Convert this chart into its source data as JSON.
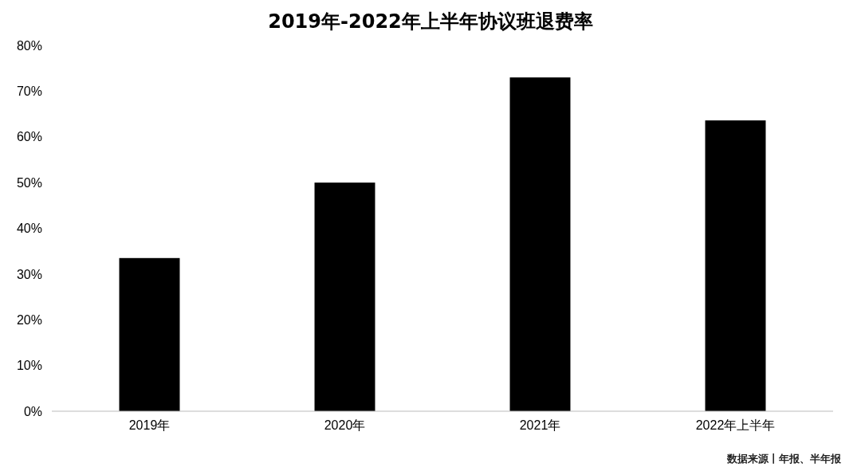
{
  "chart_data": {
    "type": "bar",
    "title": "2019年-2022年上半年协议班退费率",
    "categories": [
      "2019年",
      "2020年",
      "2021年",
      "2022年上半年"
    ],
    "values": [
      33.5,
      50,
      73,
      63.6
    ],
    "color": "#000000",
    "ylim": [
      0,
      80
    ],
    "yticks": [
      {
        "value": 0,
        "label": "0%"
      },
      {
        "value": 10,
        "label": "10%"
      },
      {
        "value": 20,
        "label": "20%"
      },
      {
        "value": 30,
        "label": "30%"
      },
      {
        "value": 40,
        "label": "40%"
      },
      {
        "value": 50,
        "label": "50%"
      },
      {
        "value": 60,
        "label": "60%"
      },
      {
        "value": 70,
        "label": "70%"
      },
      {
        "value": 80,
        "label": "80%"
      }
    ],
    "grid": false,
    "annotations": [
      "数据来源丨年报、半年报"
    ]
  }
}
